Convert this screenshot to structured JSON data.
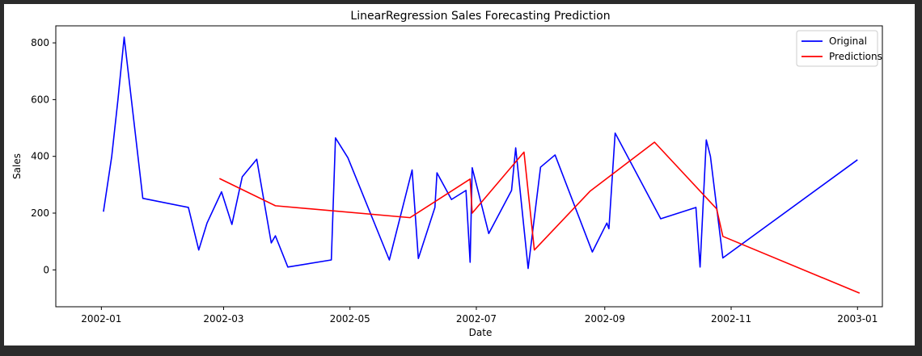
{
  "chart_data": {
    "type": "line",
    "title": "LinearRegression Sales Forecasting Prediction",
    "xlabel": "Date",
    "ylabel": "Sales",
    "x_type": "date",
    "xlim": [
      "2001-12-10",
      "2003-01-13"
    ],
    "ylim": [
      -130,
      860
    ],
    "x_ticks": [
      {
        "date": "2002-01-01",
        "label": "2002-01"
      },
      {
        "date": "2002-03-01",
        "label": "2002-03"
      },
      {
        "date": "2002-05-01",
        "label": "2002-05"
      },
      {
        "date": "2002-07-01",
        "label": "2002-07"
      },
      {
        "date": "2002-09-01",
        "label": "2002-09"
      },
      {
        "date": "2002-11-01",
        "label": "2002-11"
      },
      {
        "date": "2003-01-01",
        "label": "2003-01"
      }
    ],
    "y_ticks": [
      0,
      200,
      400,
      600,
      800
    ],
    "grid": false,
    "legend_position": "top-right",
    "series": [
      {
        "name": "Original",
        "color": "#0000ff",
        "points": [
          [
            "2002-01-02",
            205
          ],
          [
            "2002-01-06",
            400
          ],
          [
            "2002-01-09",
            600
          ],
          [
            "2002-01-12",
            820
          ],
          [
            "2002-01-21",
            252
          ],
          [
            "2002-02-12",
            220
          ],
          [
            "2002-02-17",
            70
          ],
          [
            "2002-02-21",
            165
          ],
          [
            "2002-02-28",
            275
          ],
          [
            "2002-03-05",
            160
          ],
          [
            "2002-03-10",
            328
          ],
          [
            "2002-03-17",
            390
          ],
          [
            "2002-03-24",
            95
          ],
          [
            "2002-03-26",
            120
          ],
          [
            "2002-04-01",
            10
          ],
          [
            "2002-04-22",
            35
          ],
          [
            "2002-04-24",
            465
          ],
          [
            "2002-04-30",
            395
          ],
          [
            "2002-05-20",
            35
          ],
          [
            "2002-05-31",
            352
          ],
          [
            "2002-06-03",
            40
          ],
          [
            "2002-06-11",
            220
          ],
          [
            "2002-06-12",
            342
          ],
          [
            "2002-06-19",
            248
          ],
          [
            "2002-06-26",
            280
          ],
          [
            "2002-06-28",
            27
          ],
          [
            "2002-06-29",
            360
          ],
          [
            "2002-07-07",
            128
          ],
          [
            "2002-07-18",
            280
          ],
          [
            "2002-07-20",
            430
          ],
          [
            "2002-07-26",
            5
          ],
          [
            "2002-08-01",
            362
          ],
          [
            "2002-08-08",
            405
          ],
          [
            "2002-08-26",
            63
          ],
          [
            "2002-09-02",
            165
          ],
          [
            "2002-09-03",
            145
          ],
          [
            "2002-09-06",
            482
          ],
          [
            "2002-09-28",
            180
          ],
          [
            "2002-10-15",
            220
          ],
          [
            "2002-10-17",
            10
          ],
          [
            "2002-10-20",
            458
          ],
          [
            "2002-10-22",
            400
          ],
          [
            "2002-10-28",
            42
          ],
          [
            "2003-01-01",
            388
          ]
        ]
      },
      {
        "name": "Predictions",
        "color": "#ff0000",
        "points": [
          [
            "2002-02-27",
            322
          ],
          [
            "2002-03-26",
            226
          ],
          [
            "2002-05-30",
            184
          ],
          [
            "2002-06-28",
            320
          ],
          [
            "2002-06-29",
            200
          ],
          [
            "2002-07-24",
            415
          ],
          [
            "2002-07-29",
            70
          ],
          [
            "2002-08-25",
            278
          ],
          [
            "2002-09-25",
            450
          ],
          [
            "2002-10-25",
            215
          ],
          [
            "2002-10-28",
            118
          ],
          [
            "2003-01-02",
            -82
          ]
        ]
      }
    ]
  }
}
